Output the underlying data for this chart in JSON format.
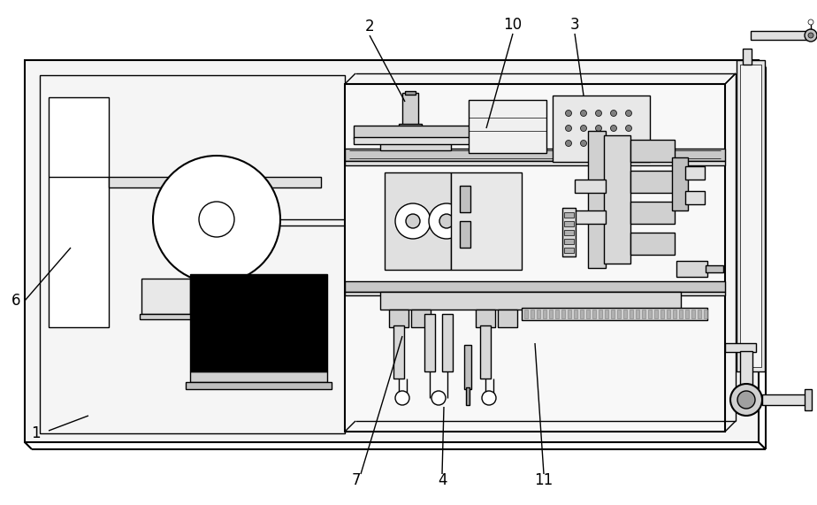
{
  "bg_color": "#ffffff",
  "line_color": "#000000",
  "lw": 1.0,
  "lw2": 1.5,
  "lw3": 2.0,
  "fig_width": 9.24,
  "fig_height": 5.71,
  "label_fontsize": 12
}
